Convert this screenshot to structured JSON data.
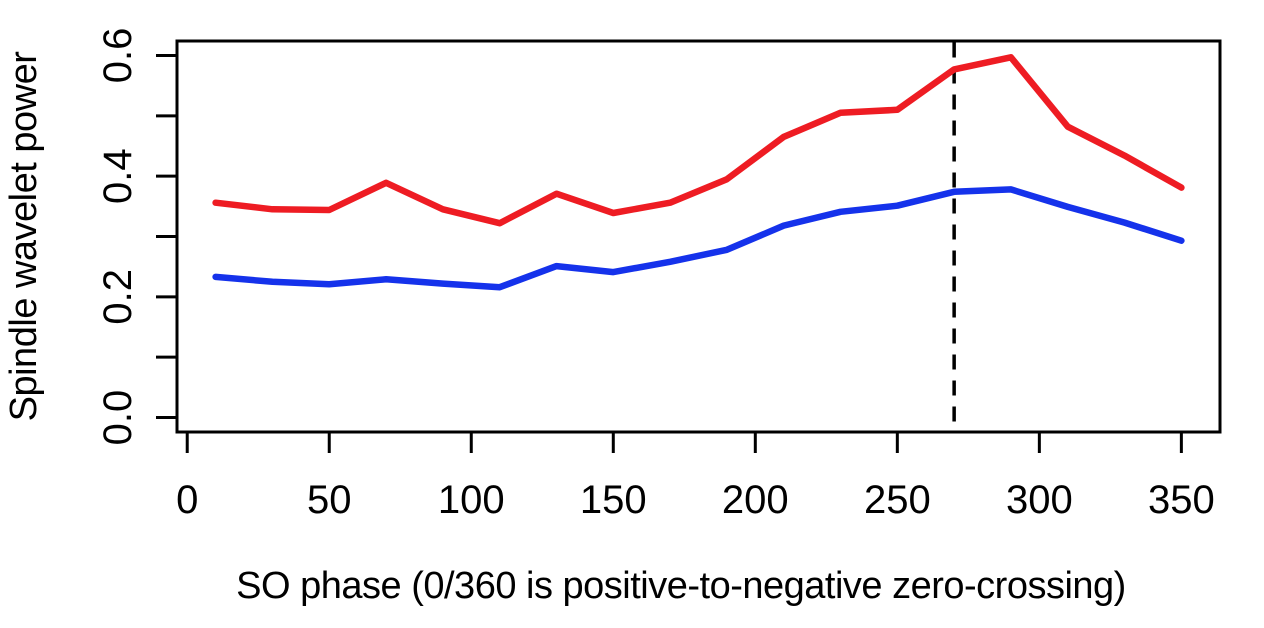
{
  "figure": {
    "background": "#ffffff",
    "axis_color": "#000000",
    "text_color": "#000000"
  },
  "chart_data": {
    "type": "line",
    "title": "",
    "xlabel": "SO phase (0/360 is positive-to-negative zero-crossing)",
    "ylabel": "Spindle wavelet power",
    "x": [
      10,
      30,
      50,
      70,
      90,
      110,
      130,
      150,
      170,
      190,
      210,
      230,
      250,
      270,
      290,
      310,
      330,
      350
    ],
    "series": [
      {
        "name": "red-line",
        "color": "#ee1c23",
        "values": [
          0.356,
          0.345,
          0.344,
          0.389,
          0.345,
          0.322,
          0.371,
          0.339,
          0.356,
          0.395,
          0.465,
          0.505,
          0.51,
          0.577,
          0.597,
          0.482,
          0.434,
          0.381
        ]
      },
      {
        "name": "blue-line",
        "color": "#1532eb",
        "values": [
          0.233,
          0.225,
          0.221,
          0.229,
          0.222,
          0.216,
          0.251,
          0.241,
          0.258,
          0.278,
          0.318,
          0.341,
          0.351,
          0.374,
          0.378,
          0.349,
          0.323,
          0.293
        ]
      }
    ],
    "x_ticks": [
      0,
      50,
      100,
      150,
      200,
      250,
      300,
      350
    ],
    "x_tick_labels": [
      "0",
      "50",
      "100",
      "150",
      "200",
      "250",
      "300",
      "350"
    ],
    "y_ticks": [
      0.0,
      0.1,
      0.2,
      0.3,
      0.4,
      0.5,
      0.6
    ],
    "y_tick_labels": [
      "0.0",
      "",
      "0.2",
      "",
      "0.4",
      "",
      "0.6"
    ],
    "xlim": [
      0,
      360
    ],
    "ylim": [
      0.0,
      0.6
    ],
    "grid": false,
    "legend": "none",
    "vline": {
      "x": 270,
      "style": "dashed",
      "color": "#000000"
    }
  }
}
